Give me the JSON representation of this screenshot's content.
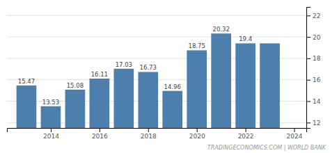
{
  "chart_data": {
    "type": "bar",
    "x": [
      2013,
      2014,
      2015,
      2016,
      2017,
      2018,
      2019,
      2020,
      2021,
      2022,
      2023
    ],
    "values": [
      15.47,
      13.53,
      15.08,
      16.11,
      17.03,
      16.73,
      14.96,
      18.75,
      20.32,
      19.4,
      19.4
    ],
    "value_labels": [
      "15.47",
      "13.53",
      "15.08",
      "16.11",
      "17.03",
      "16.73",
      "14.96",
      "18.75",
      "20.32",
      "19.4",
      null
    ],
    "data_labels": true,
    "color": "#4d7fad",
    "xlim": [
      2012.2,
      2024.5
    ],
    "xticks": [
      2014,
      2016,
      2018,
      2020,
      2022,
      2024
    ],
    "ylim": [
      11.5,
      22.8
    ],
    "yticks": [
      12,
      14,
      16,
      18,
      20,
      22
    ],
    "grid": true,
    "annotation": "TRADINGECONOMICS.COM | WORLD BANK"
  }
}
